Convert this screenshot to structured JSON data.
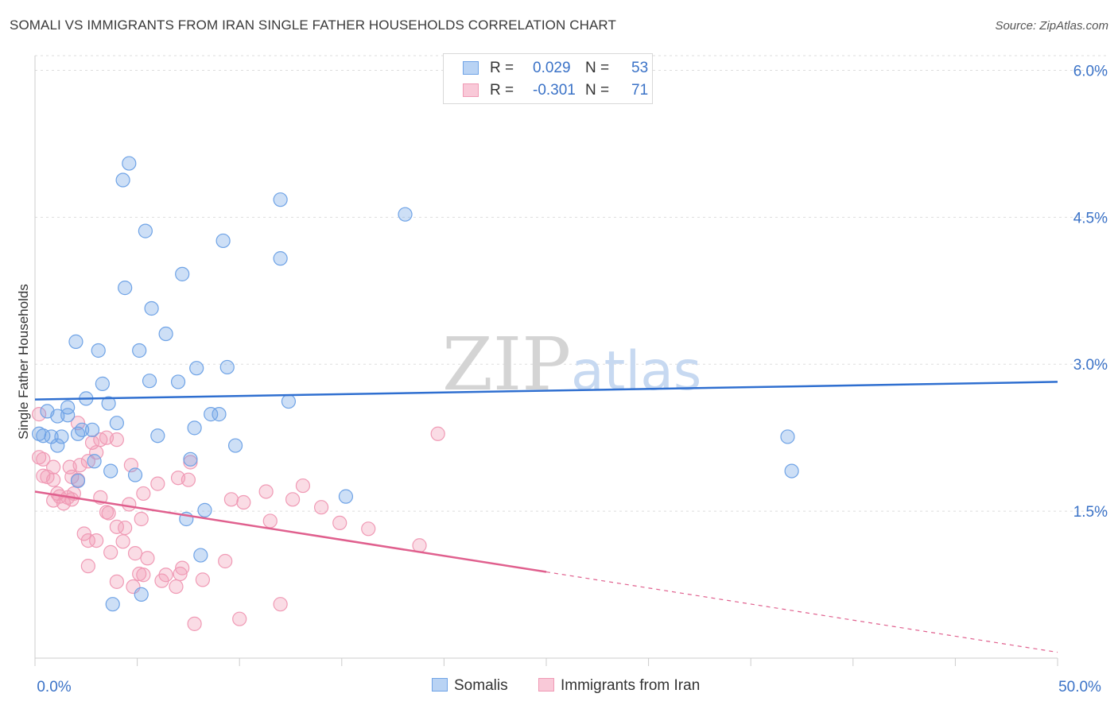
{
  "title": "SOMALI VS IMMIGRANTS FROM IRAN SINGLE FATHER HOUSEHOLDS CORRELATION CHART",
  "source": "Source: ZipAtlas.com",
  "watermark": {
    "zip": "ZIP",
    "atlas": "atlas"
  },
  "legend": {
    "rows": [
      {
        "r_label": "R =",
        "r_value": "0.029",
        "n_label": "N =",
        "n_value": "53"
      },
      {
        "r_label": "R =",
        "r_value": "-0.301",
        "n_label": "N =",
        "n_value": "71"
      }
    ]
  },
  "chart_data": {
    "type": "scatter",
    "title": "SOMALI VS IMMIGRANTS FROM IRAN SINGLE FATHER HOUSEHOLDS CORRELATION CHART",
    "xlabel": "",
    "ylabel": "Single Father Households",
    "xlim": [
      0,
      50
    ],
    "ylim": [
      0,
      6.15
    ],
    "x_tick_labels": [
      "0.0%",
      "50.0%"
    ],
    "y_ticks": [
      1.5,
      3.0,
      4.5,
      6.0
    ],
    "y_tick_labels": [
      "1.5%",
      "3.0%",
      "4.5%",
      "6.0%"
    ],
    "grid": "horizontal dashed",
    "legend_position": "top-center",
    "colors": {
      "somalis": "#6fa3e6",
      "iran": "#f09ab5",
      "somalis_line": "#2f6fd0",
      "iran_line": "#e0608e",
      "tick_text": "#3a72c7"
    },
    "series": [
      {
        "name": "Somalis",
        "r": 0.029,
        "n": 53,
        "trend": {
          "x": [
            0,
            50
          ],
          "y": [
            2.64,
            2.82
          ]
        },
        "points": [
          [
            4.6,
            5.05
          ],
          [
            4.3,
            4.88
          ],
          [
            12.0,
            4.68
          ],
          [
            18.1,
            4.53
          ],
          [
            5.4,
            4.36
          ],
          [
            9.2,
            4.26
          ],
          [
            12.0,
            4.08
          ],
          [
            7.2,
            3.92
          ],
          [
            4.4,
            3.78
          ],
          [
            5.7,
            3.57
          ],
          [
            6.4,
            3.31
          ],
          [
            2.0,
            3.23
          ],
          [
            3.1,
            3.14
          ],
          [
            5.1,
            3.14
          ],
          [
            7.9,
            2.96
          ],
          [
            9.4,
            2.97
          ],
          [
            3.3,
            2.8
          ],
          [
            5.6,
            2.83
          ],
          [
            7.0,
            2.82
          ],
          [
            2.5,
            2.65
          ],
          [
            1.6,
            2.56
          ],
          [
            3.6,
            2.6
          ],
          [
            12.4,
            2.62
          ],
          [
            0.6,
            2.52
          ],
          [
            1.1,
            2.47
          ],
          [
            1.6,
            2.48
          ],
          [
            8.6,
            2.49
          ],
          [
            9.0,
            2.49
          ],
          [
            4.0,
            2.4
          ],
          [
            2.3,
            2.33
          ],
          [
            2.8,
            2.33
          ],
          [
            7.8,
            2.35
          ],
          [
            0.2,
            2.29
          ],
          [
            0.4,
            2.27
          ],
          [
            0.8,
            2.26
          ],
          [
            1.3,
            2.26
          ],
          [
            2.1,
            2.29
          ],
          [
            6.0,
            2.27
          ],
          [
            1.1,
            2.17
          ],
          [
            9.8,
            2.17
          ],
          [
            36.8,
            2.26
          ],
          [
            7.6,
            2.03
          ],
          [
            2.9,
            2.01
          ],
          [
            3.7,
            1.91
          ],
          [
            4.9,
            1.87
          ],
          [
            2.1,
            1.81
          ],
          [
            37.0,
            1.91
          ],
          [
            15.2,
            1.65
          ],
          [
            8.3,
            1.51
          ],
          [
            7.4,
            1.42
          ],
          [
            8.1,
            1.05
          ],
          [
            5.2,
            0.65
          ],
          [
            3.8,
            0.55
          ]
        ]
      },
      {
        "name": "Immigrants from Iran",
        "r": -0.301,
        "n": 71,
        "trend": {
          "x": [
            0,
            25
          ],
          "y": [
            1.7,
            0.88
          ]
        },
        "trend_dashed": {
          "x": [
            25,
            50
          ],
          "y": [
            0.88,
            0.06
          ]
        },
        "points": [
          [
            0.2,
            2.49
          ],
          [
            2.1,
            2.4
          ],
          [
            3.5,
            2.25
          ],
          [
            3.2,
            2.23
          ],
          [
            4.0,
            2.23
          ],
          [
            19.7,
            2.29
          ],
          [
            2.8,
            2.2
          ],
          [
            3.0,
            2.1
          ],
          [
            0.2,
            2.05
          ],
          [
            0.4,
            2.03
          ],
          [
            2.6,
            2.01
          ],
          [
            7.6,
            2.0
          ],
          [
            2.2,
            1.97
          ],
          [
            1.7,
            1.95
          ],
          [
            0.9,
            1.95
          ],
          [
            4.7,
            1.97
          ],
          [
            0.4,
            1.86
          ],
          [
            0.6,
            1.85
          ],
          [
            0.9,
            1.82
          ],
          [
            7.0,
            1.84
          ],
          [
            7.5,
            1.82
          ],
          [
            2.1,
            1.82
          ],
          [
            13.1,
            1.76
          ],
          [
            1.1,
            1.68
          ],
          [
            1.9,
            1.68
          ],
          [
            5.3,
            1.68
          ],
          [
            11.3,
            1.7
          ],
          [
            1.6,
            1.64
          ],
          [
            0.9,
            1.61
          ],
          [
            3.2,
            1.64
          ],
          [
            1.2,
            1.65
          ],
          [
            1.4,
            1.58
          ],
          [
            1.8,
            1.62
          ],
          [
            9.6,
            1.62
          ],
          [
            10.2,
            1.59
          ],
          [
            12.6,
            1.62
          ],
          [
            4.6,
            1.57
          ],
          [
            14.0,
            1.54
          ],
          [
            3.5,
            1.49
          ],
          [
            3.6,
            1.48
          ],
          [
            5.2,
            1.42
          ],
          [
            11.5,
            1.4
          ],
          [
            14.9,
            1.38
          ],
          [
            4.0,
            1.34
          ],
          [
            4.4,
            1.33
          ],
          [
            16.3,
            1.32
          ],
          [
            2.6,
            1.2
          ],
          [
            3.0,
            1.2
          ],
          [
            4.3,
            1.19
          ],
          [
            18.8,
            1.15
          ],
          [
            3.7,
            1.08
          ],
          [
            4.9,
            1.07
          ],
          [
            5.5,
            1.02
          ],
          [
            9.3,
            0.99
          ],
          [
            2.6,
            0.94
          ],
          [
            7.2,
            0.92
          ],
          [
            7.1,
            0.86
          ],
          [
            5.1,
            0.86
          ],
          [
            5.3,
            0.85
          ],
          [
            6.4,
            0.85
          ],
          [
            4.0,
            0.78
          ],
          [
            6.2,
            0.79
          ],
          [
            8.2,
            0.8
          ],
          [
            4.8,
            0.73
          ],
          [
            6.9,
            0.73
          ],
          [
            12.0,
            0.55
          ],
          [
            7.8,
            0.35
          ],
          [
            10.0,
            0.4
          ],
          [
            1.8,
            1.85
          ],
          [
            6.0,
            1.78
          ],
          [
            2.4,
            1.27
          ]
        ]
      }
    ]
  }
}
